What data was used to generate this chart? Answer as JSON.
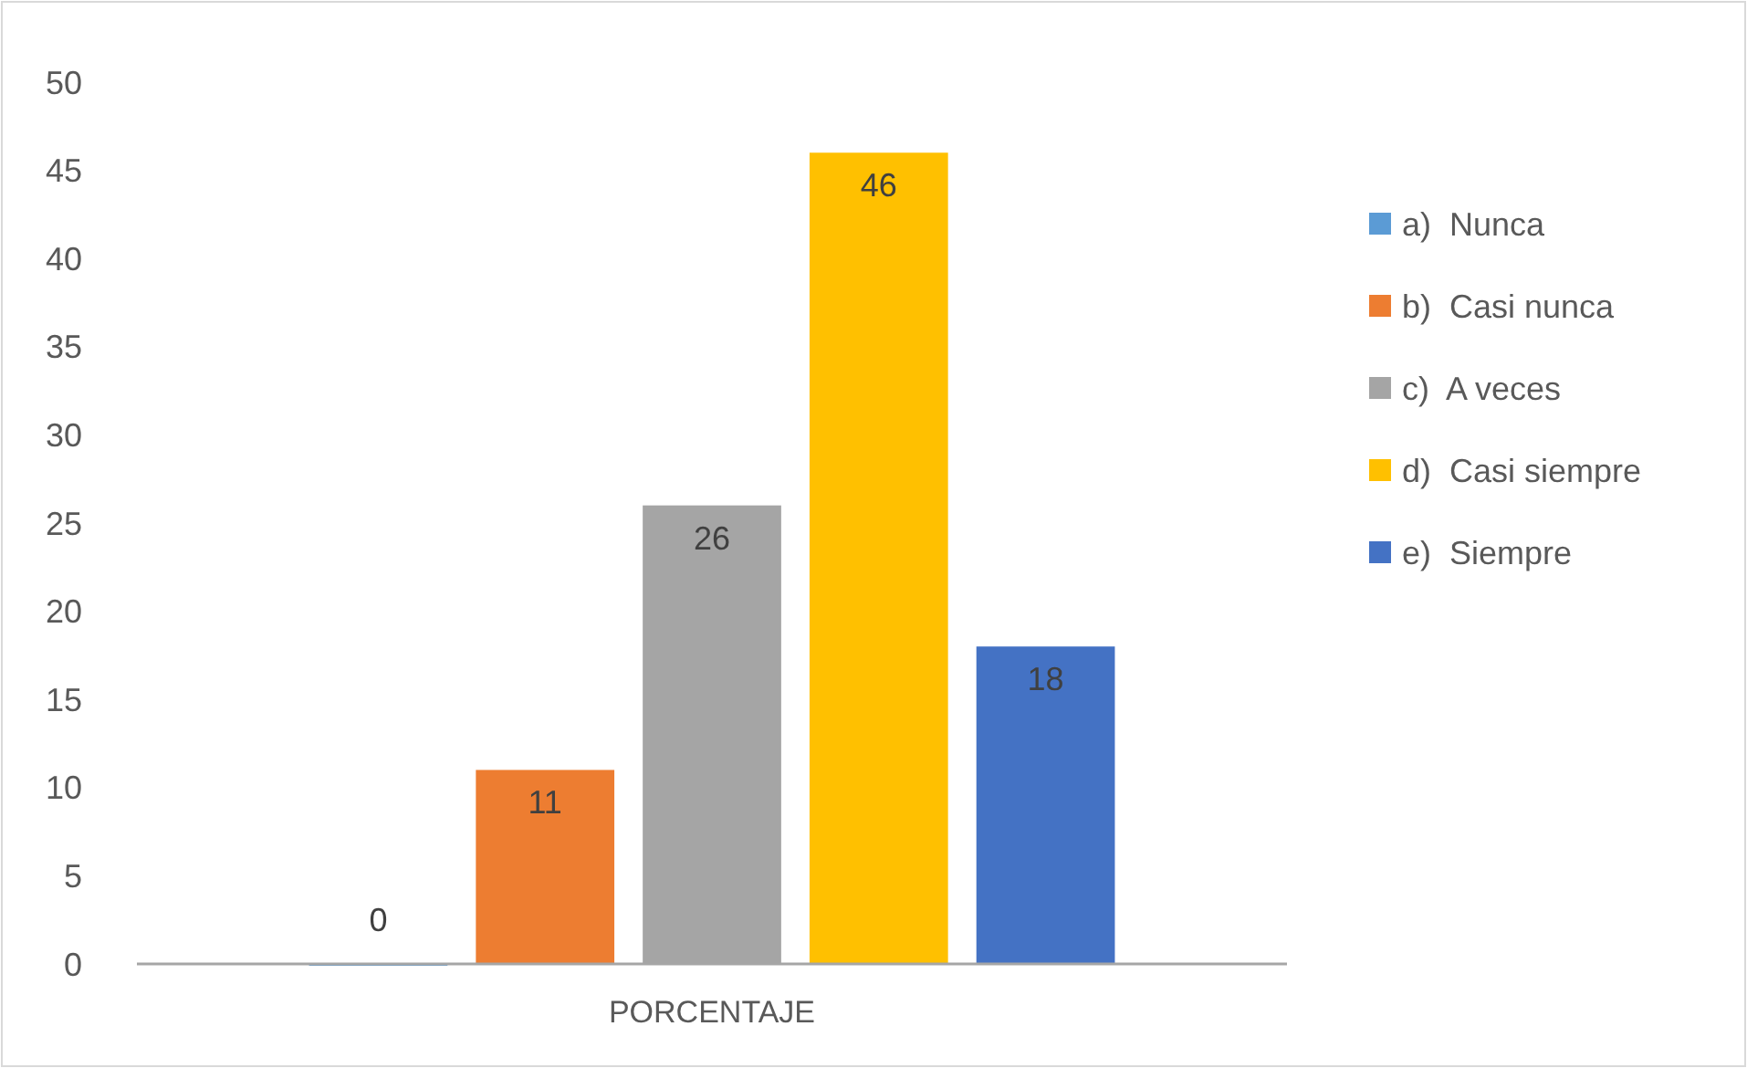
{
  "chart_data": {
    "type": "bar",
    "categories": [
      "PORCENTAJE"
    ],
    "series": [
      {
        "name": "a)  Nunca",
        "color": "#5b9bd5",
        "values": [
          0
        ]
      },
      {
        "name": "b)  Casi nunca",
        "color": "#ed7d31",
        "values": [
          11
        ]
      },
      {
        "name": "c)  A veces",
        "color": "#a5a5a5",
        "values": [
          26
        ]
      },
      {
        "name": "d)  Casi siempre",
        "color": "#ffc000",
        "values": [
          46
        ]
      },
      {
        "name": "e)  Siempre",
        "color": "#4472c4",
        "values": [
          18
        ]
      }
    ],
    "ylim": [
      0,
      50
    ],
    "yticks": [
      0,
      5,
      10,
      15,
      20,
      25,
      30,
      35,
      40,
      45,
      50
    ],
    "data_labels": true,
    "legend": "right",
    "grid": false
  }
}
